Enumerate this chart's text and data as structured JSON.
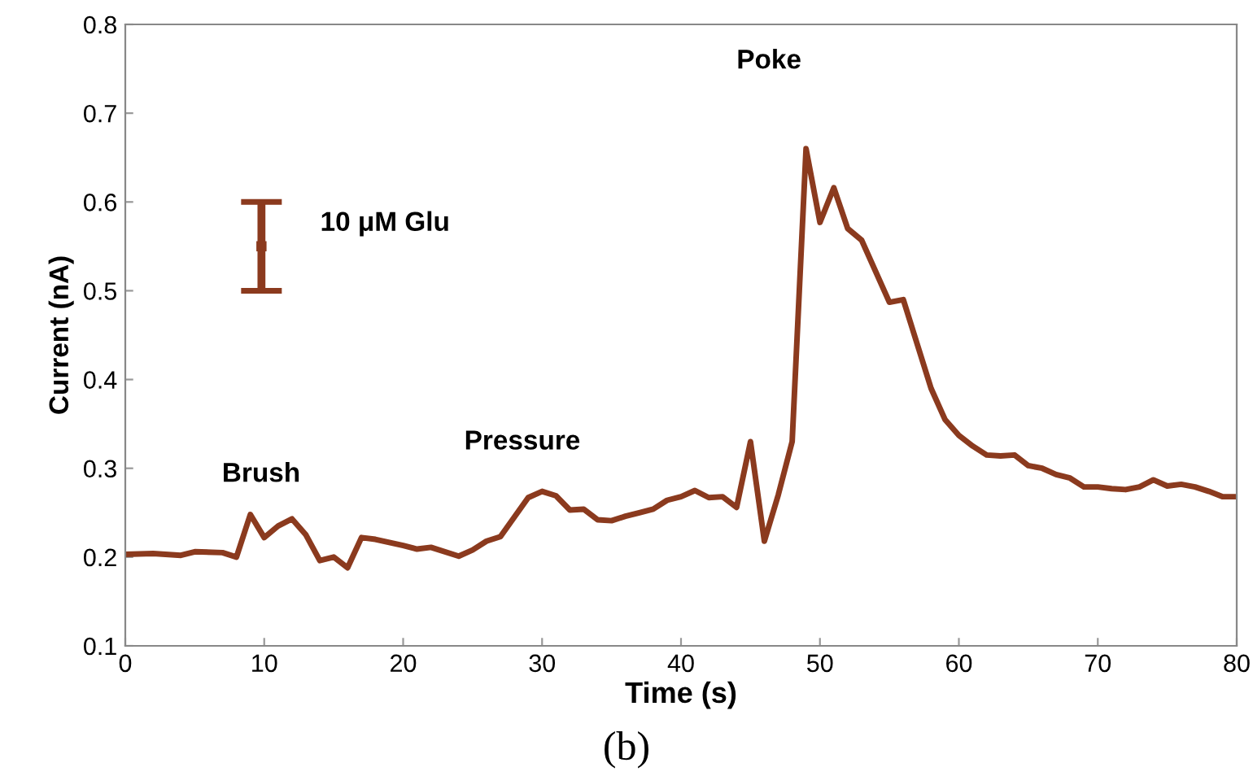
{
  "chart_data": {
    "type": "line",
    "xlabel": "Time (s)",
    "ylabel": "Current (nA)",
    "x": [
      0,
      2,
      4,
      5,
      7,
      8,
      9,
      10,
      11,
      12,
      13,
      14,
      15,
      16,
      17,
      18,
      20,
      21,
      22,
      24,
      25,
      26,
      27,
      28,
      29,
      30,
      31,
      32,
      33,
      34,
      35,
      36,
      37,
      38,
      39,
      40,
      41,
      42,
      43,
      44,
      45,
      46,
      47,
      48,
      49,
      50,
      51,
      52,
      53,
      55,
      56,
      57,
      58,
      59,
      60,
      61,
      62,
      63,
      64,
      65,
      66,
      67,
      68,
      69,
      70,
      71,
      72,
      73,
      74,
      75,
      76,
      77,
      78,
      79,
      80
    ],
    "series": [
      {
        "color": "#8b3a1e",
        "values": [
          0.203,
          0.204,
          0.202,
          0.206,
          0.205,
          0.2,
          0.248,
          0.222,
          0.235,
          0.243,
          0.225,
          0.196,
          0.2,
          0.188,
          0.222,
          0.22,
          0.213,
          0.209,
          0.211,
          0.201,
          0.208,
          0.218,
          0.223,
          0.245,
          0.267,
          0.274,
          0.269,
          0.253,
          0.254,
          0.242,
          0.241,
          0.246,
          0.25,
          0.254,
          0.264,
          0.268,
          0.275,
          0.267,
          0.268,
          0.256,
          0.33,
          0.218,
          0.27,
          0.33,
          0.66,
          0.577,
          0.616,
          0.57,
          0.557,
          0.487,
          0.49,
          0.44,
          0.39,
          0.355,
          0.337,
          0.325,
          0.315,
          0.314,
          0.315,
          0.303,
          0.3,
          0.293,
          0.289,
          0.279,
          0.279,
          0.277,
          0.276,
          0.279,
          0.287,
          0.28,
          0.282,
          0.279,
          0.274,
          0.268,
          0.268
        ]
      },
      {
        "type": "scatter",
        "name": "10 μM Glu",
        "x": [
          9.8
        ],
        "values": [
          0.55
        ],
        "errors": [
          0.05
        ],
        "color": "#8b3a1e",
        "marker": "square"
      }
    ],
    "xlim": [
      0,
      80
    ],
    "xticks": [
      0,
      10,
      20,
      30,
      40,
      50,
      60,
      70,
      80
    ],
    "ylim": [
      0.1,
      0.8
    ],
    "yticks": [
      0.1,
      0.2,
      0.3,
      0.4,
      0.5,
      0.6,
      0.7,
      0.8
    ],
    "grid": false,
    "legend": false,
    "marker": "none",
    "line_style": "solid",
    "annotations": [
      "Brush",
      "Pressure",
      "Poke",
      "(b)"
    ]
  }
}
